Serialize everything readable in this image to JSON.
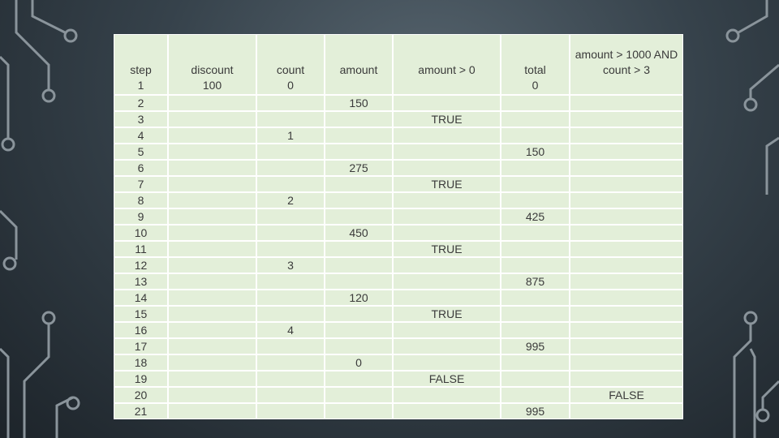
{
  "table": {
    "header": [
      "step",
      "discount",
      "count",
      "amount",
      "amount > 0",
      "total",
      "amount > 1000 AND count > 3"
    ],
    "rows": [
      [
        1,
        100,
        0,
        null,
        null,
        0,
        null
      ],
      [
        2,
        null,
        null,
        150,
        null,
        null,
        null
      ],
      [
        3,
        null,
        null,
        null,
        "TRUE",
        null,
        null
      ],
      [
        4,
        null,
        1,
        null,
        null,
        null,
        null
      ],
      [
        5,
        null,
        null,
        null,
        null,
        150,
        null
      ],
      [
        6,
        null,
        null,
        275,
        null,
        null,
        null
      ],
      [
        7,
        null,
        null,
        null,
        "TRUE",
        null,
        null
      ],
      [
        8,
        null,
        2,
        null,
        null,
        null,
        null
      ],
      [
        9,
        null,
        null,
        null,
        null,
        425,
        null
      ],
      [
        10,
        null,
        null,
        450,
        null,
        null,
        null
      ],
      [
        11,
        null,
        null,
        null,
        "TRUE",
        null,
        null
      ],
      [
        12,
        null,
        3,
        null,
        null,
        null,
        null
      ],
      [
        13,
        null,
        null,
        null,
        null,
        875,
        null
      ],
      [
        14,
        null,
        null,
        120,
        null,
        null,
        null
      ],
      [
        15,
        null,
        null,
        null,
        "TRUE",
        null,
        null
      ],
      [
        16,
        null,
        4,
        null,
        null,
        null,
        null
      ],
      [
        17,
        null,
        null,
        null,
        null,
        995,
        null
      ],
      [
        18,
        null,
        null,
        0,
        null,
        null,
        null
      ],
      [
        19,
        null,
        null,
        null,
        "FALSE",
        null,
        null
      ],
      [
        20,
        null,
        null,
        null,
        null,
        null,
        "FALSE"
      ],
      [
        21,
        null,
        null,
        null,
        null,
        995,
        null
      ]
    ]
  }
}
